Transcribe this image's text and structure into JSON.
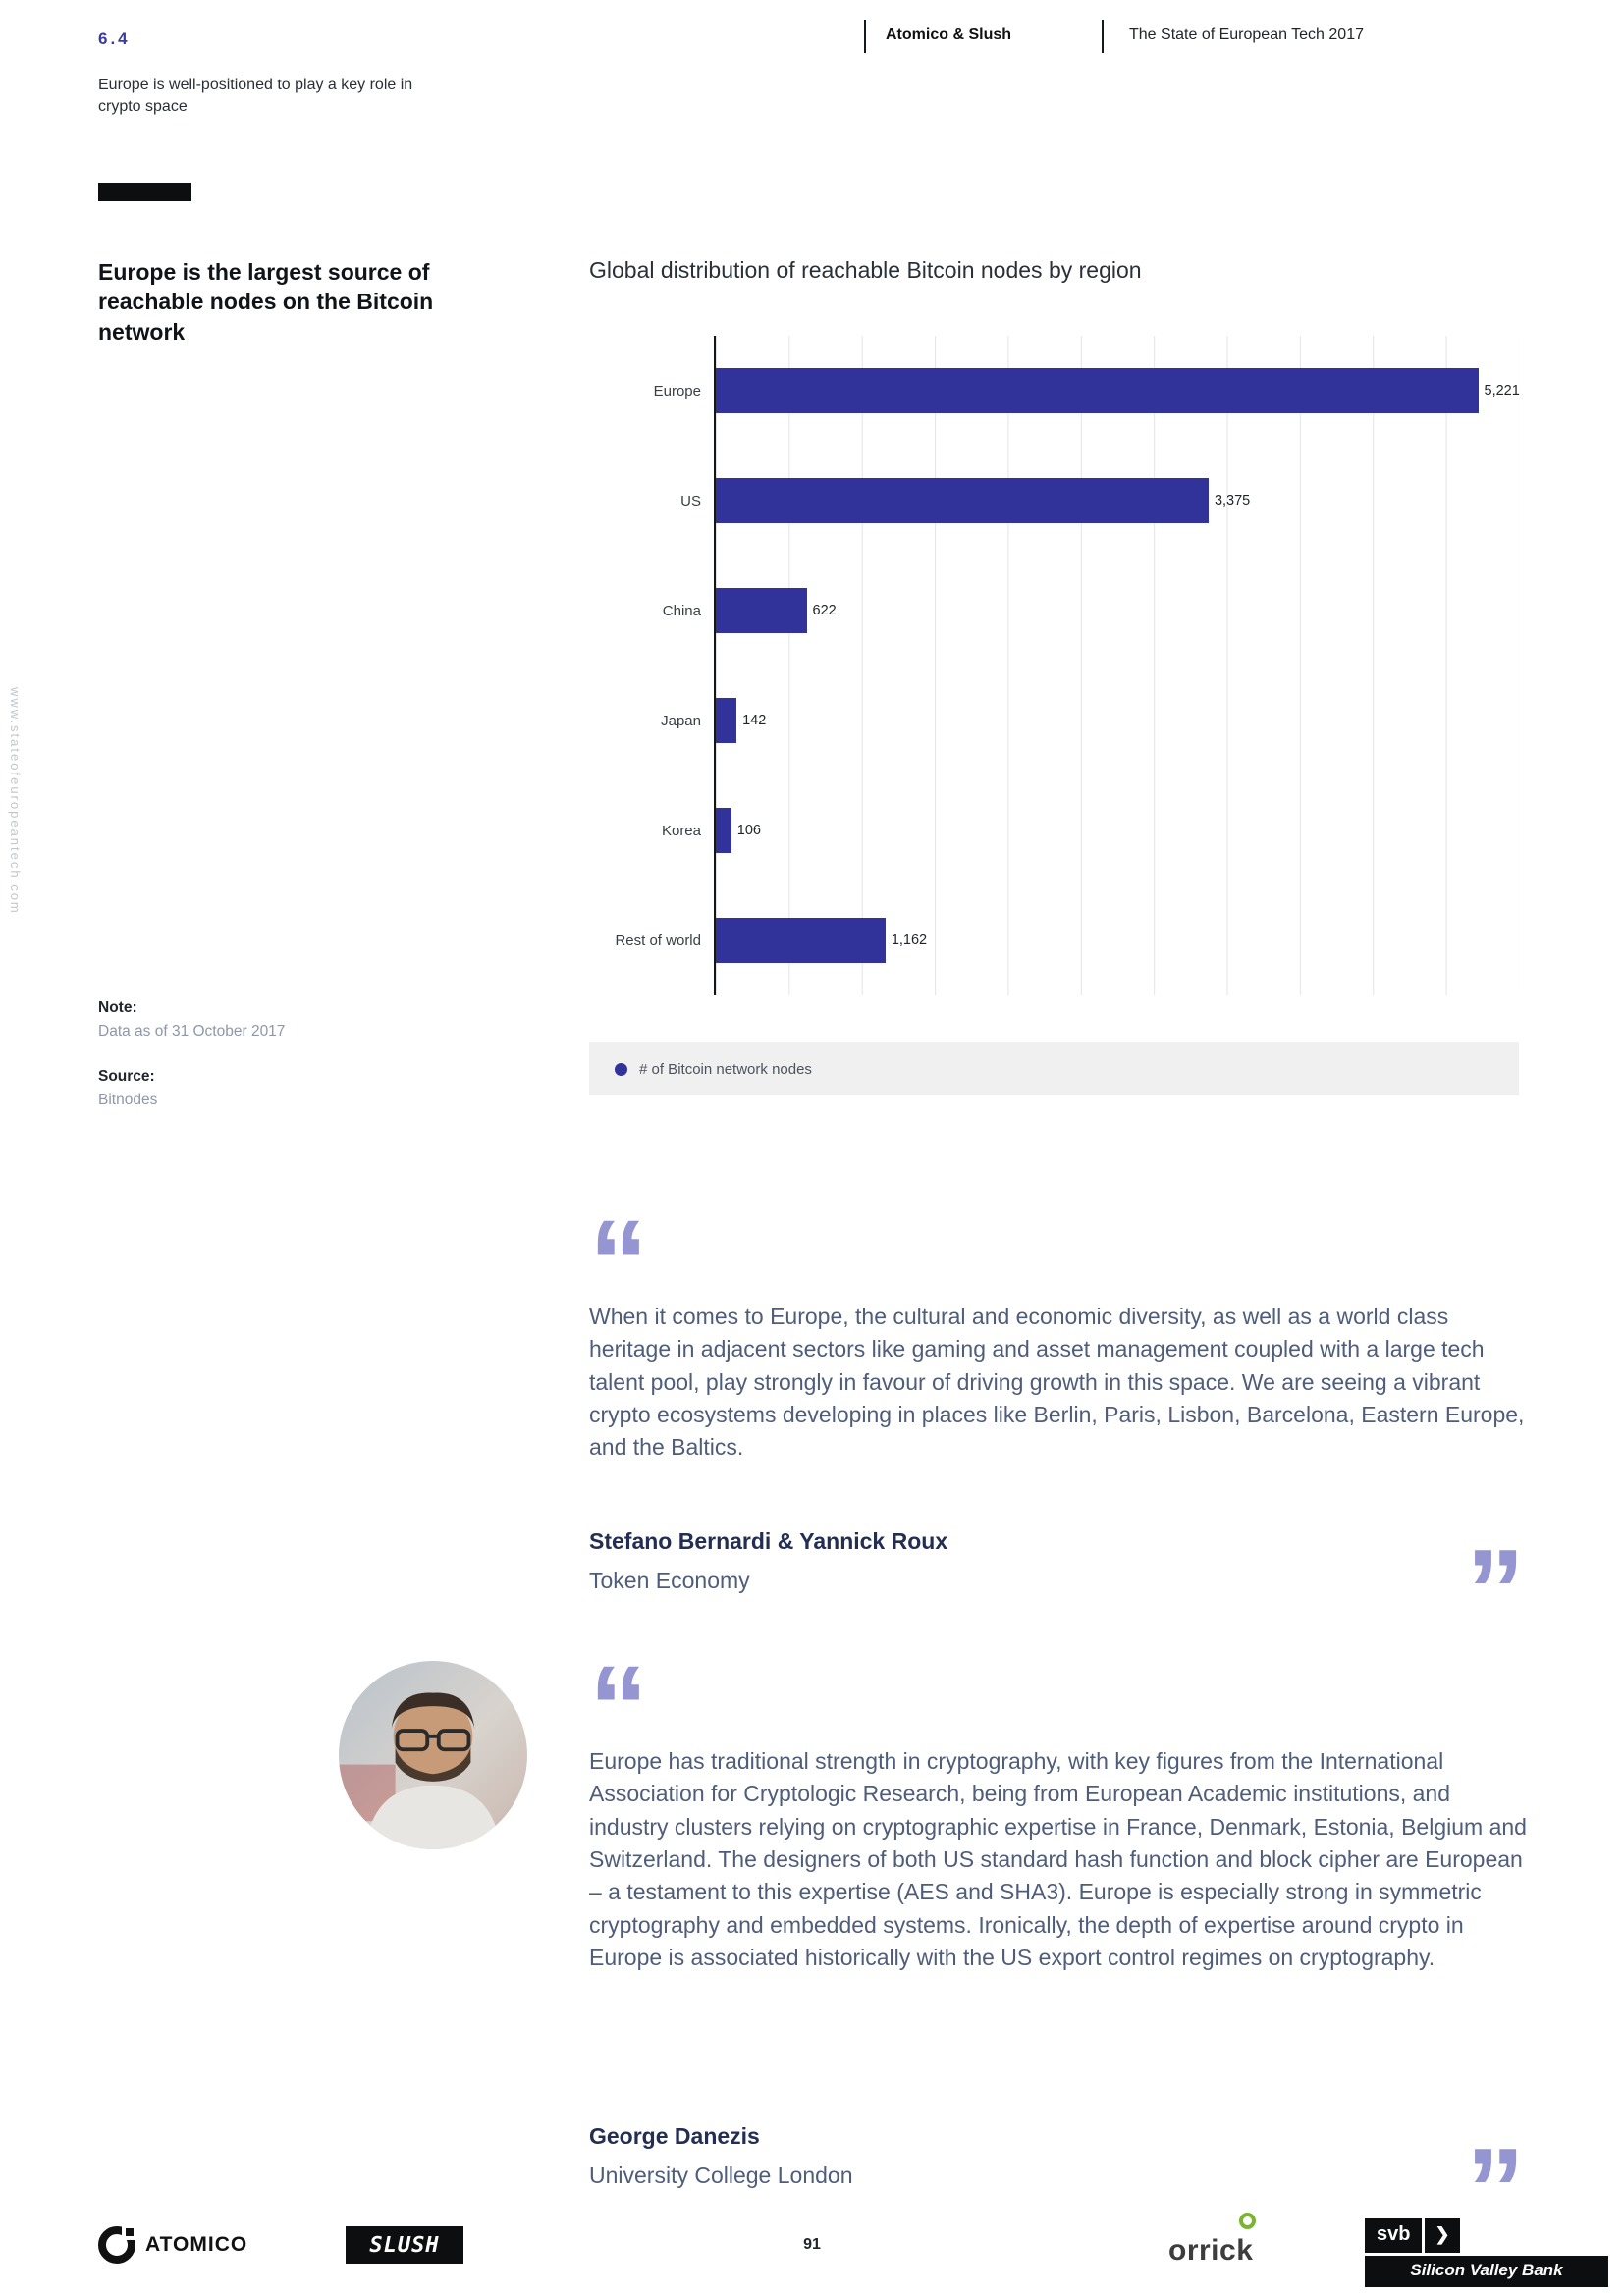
{
  "header": {
    "section_number": "6.4",
    "section_subtitle": "Europe is well-positioned to play a key role in crypto space",
    "brand": "Atomico & Slush",
    "report_title": "The State of European Tech 2017"
  },
  "sidebar": {
    "heading": "Europe is the largest source of reachable nodes on the Bitcoin network",
    "note_label": "Note:",
    "note_text": "Data as of 31 October 2017",
    "source_label": "Source:",
    "source_text": "Bitnodes",
    "watermark": "www.stateofeuropeantech.com"
  },
  "chart_data": {
    "type": "bar",
    "orientation": "horizontal",
    "title": "Global distribution of reachable Bitcoin nodes by region",
    "categories": [
      "Europe",
      "US",
      "China",
      "Japan",
      "Korea",
      "Rest of world"
    ],
    "values": [
      5221,
      3375,
      622,
      142,
      106,
      1162
    ],
    "value_labels": [
      "5,221",
      "3,375",
      "622",
      "142",
      "106",
      "1,162"
    ],
    "xlim": [
      0,
      5500
    ],
    "gridline_step": 500,
    "bar_color": "#32329b",
    "legend": [
      "# of Bitcoin network nodes"
    ],
    "legend_position": "bottom"
  },
  "icons": {
    "open_quote": "“",
    "close_quote": "”"
  },
  "quotes": [
    {
      "text": "When it comes to Europe, the cultural and economic diversity, as well as a world class heritage in adjacent sectors like gaming and asset management coupled with a large tech talent pool, play strongly in favour of driving growth in this space. We are seeing a vibrant crypto ecosystems developing in places like Berlin, Paris, Lisbon, Barcelona, Eastern Europe, and the Baltics.",
      "author": "Stefano Bernardi & Yannick Roux",
      "affiliation": "Token Economy"
    },
    {
      "text": "Europe has traditional strength in cryptography, with key figures from the International Association for Cryptologic Research, being from European Academic institutions, and industry clusters relying on cryptographic expertise in France, Denmark, Estonia, Belgium and Switzerland. The designers of both US standard hash function and block cipher are European – a testament to this expertise (AES and SHA3). Europe is especially strong in symmetric cryptography and embedded systems. Ironically, the depth of expertise around crypto in Europe is associated historically with the US export control regimes on cryptography.",
      "author": "George Danezis",
      "affiliation": "University College London"
    }
  ],
  "footer": {
    "page_number": "91",
    "atomico_label": "ATOMICO",
    "slush_label": "SLUSH",
    "orrick_label": "orrick",
    "svb_label": "svb",
    "svb_chevron": "❯",
    "bank_label": "Silicon Valley Bank"
  }
}
